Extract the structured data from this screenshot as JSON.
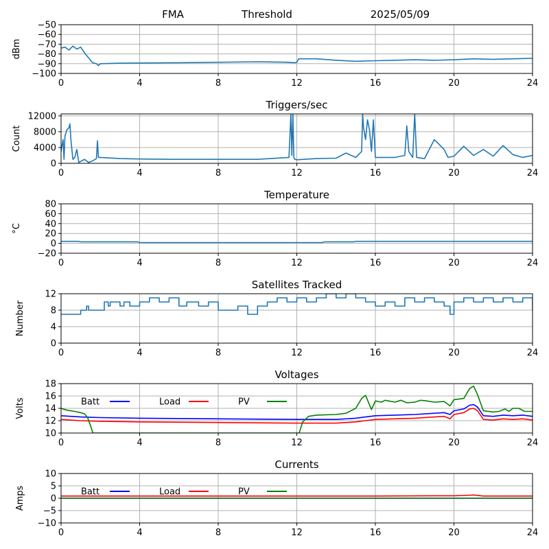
{
  "header": {
    "left": "FMA",
    "center": "Threshold",
    "right": "2025/05/09"
  },
  "colors": {
    "series": "#1f77b4",
    "batt": "#0000ff",
    "load": "#ff0000",
    "pv": "#008000",
    "grid": "#b0b0b0"
  },
  "chart_data": [
    {
      "type": "line",
      "title": "",
      "xlabel": "",
      "ylabel": "dBm",
      "xlim": [
        0,
        24
      ],
      "ylim": [
        -100,
        -50
      ],
      "xticks": [
        0,
        4,
        8,
        12,
        16,
        20,
        24
      ],
      "yticks": [
        -100,
        -90,
        -80,
        -70,
        -60,
        -50
      ],
      "ytick_labels": [
        "−100",
        "−90",
        "−80",
        "−70",
        "−60",
        "−50"
      ],
      "grid": true,
      "series": [
        {
          "x": [
            0,
            0.2,
            0.4,
            0.6,
            0.8,
            1.0,
            1.2,
            1.4,
            1.6,
            1.8,
            1.9,
            2.0,
            3,
            6,
            10,
            11.5,
            11.9,
            12.0,
            12.1,
            13,
            14,
            15,
            16,
            17,
            18,
            19,
            20,
            21,
            22,
            23,
            24
          ],
          "y": [
            -74,
            -73,
            -76,
            -72,
            -75,
            -73,
            -79,
            -84,
            -89,
            -90,
            -92,
            -90,
            -89.5,
            -89,
            -88,
            -88.5,
            -89,
            -88.5,
            -85,
            -85,
            -86.5,
            -87.5,
            -87,
            -86.5,
            -86,
            -86.5,
            -86,
            -85,
            -85.5,
            -85,
            -84.5
          ]
        }
      ]
    },
    {
      "type": "line",
      "title": "Triggers/sec",
      "xlabel": "",
      "ylabel": "Count",
      "xlim": [
        0,
        24
      ],
      "ylim": [
        0,
        12500
      ],
      "xticks": [
        0,
        4,
        8,
        12,
        16,
        20,
        24
      ],
      "yticks": [
        0,
        4000,
        8000,
        12000
      ],
      "grid": true,
      "series": [
        {
          "x": [
            0,
            0.1,
            0.15,
            0.2,
            0.3,
            0.4,
            0.45,
            0.5,
            0.6,
            0.7,
            0.8,
            0.9,
            1.0,
            1.2,
            1.4,
            1.6,
            1.8,
            1.85,
            1.9,
            2.0,
            3,
            4,
            6,
            8,
            10,
            11.6,
            11.7,
            11.75,
            11.8,
            11.85,
            11.9,
            12.0,
            13,
            14,
            14.5,
            15,
            15.3,
            15.35,
            15.4,
            15.5,
            15.6,
            15.7,
            15.8,
            15.9,
            16.0,
            16.5,
            17.0,
            17.5,
            17.6,
            17.7,
            17.9,
            18.0,
            18.1,
            18.5,
            19,
            19.5,
            19.7,
            20,
            20.5,
            21,
            21.5,
            22,
            22.5,
            23,
            23.5,
            24
          ],
          "y": [
            3000,
            6000,
            1000,
            7000,
            8500,
            9000,
            10000,
            6000,
            1000,
            1500,
            3500,
            200,
            500,
            1000,
            200,
            600,
            1200,
            5700,
            1500,
            1500,
            1200,
            1100,
            1000,
            1000,
            1000,
            1500,
            12500,
            2000,
            12500,
            1500,
            1000,
            900,
            1200,
            1300,
            2600,
            1500,
            3000,
            12500,
            9000,
            6000,
            11000,
            8500,
            3000,
            11000,
            1500,
            1500,
            1500,
            2000,
            9500,
            3000,
            1500,
            12500,
            1500,
            1200,
            6000,
            3500,
            1500,
            1800,
            4300,
            2000,
            3500,
            1800,
            4500,
            2200,
            1500,
            2000
          ]
        }
      ]
    },
    {
      "type": "line",
      "title": "Temperature",
      "xlabel": "",
      "ylabel": "°C",
      "xlim": [
        0,
        24
      ],
      "ylim": [
        -20,
        80
      ],
      "xticks": [
        0,
        4,
        8,
        12,
        16,
        20,
        24
      ],
      "yticks": [
        -20,
        0,
        20,
        40,
        60,
        80
      ],
      "ytick_labels": [
        "−20",
        "0",
        "20",
        "40",
        "60",
        "80"
      ],
      "grid": true,
      "series": [
        {
          "x": [
            0,
            0.9,
            1.0,
            3.9,
            4.0,
            13.3,
            13.4,
            14.9,
            15.0,
            24
          ],
          "y": [
            4,
            4,
            3,
            3,
            1.5,
            1.5,
            3,
            3,
            4,
            4
          ]
        }
      ]
    },
    {
      "type": "line",
      "title": "Satellites Tracked",
      "xlabel": "",
      "ylabel": "Number",
      "xlim": [
        0,
        24
      ],
      "ylim": [
        0,
        12
      ],
      "xticks": [
        0,
        4,
        8,
        12,
        16,
        20,
        24
      ],
      "yticks": [
        0,
        4,
        8,
        12
      ],
      "grid": true,
      "step": true,
      "series": [
        {
          "x": [
            0,
            1.0,
            1.3,
            1.4,
            2.2,
            2.4,
            2.5,
            3.0,
            3.2,
            3.5,
            4.0,
            4.5,
            5.0,
            5.5,
            6.0,
            6.4,
            7.0,
            7.5,
            8.0,
            8.5,
            9.0,
            9.5,
            10.0,
            10.5,
            11.0,
            11.5,
            12.0,
            12.5,
            13.0,
            13.5,
            13.7,
            14.0,
            14.5,
            15.0,
            15.5,
            16.0,
            16.5,
            17.0,
            17.5,
            18.0,
            18.5,
            19.0,
            19.5,
            19.8,
            20.0,
            20.5,
            21.0,
            21.5,
            22.0,
            22.5,
            23.0,
            23.5,
            24
          ],
          "y": [
            7,
            8,
            9,
            8,
            10,
            9,
            10,
            9,
            10,
            9,
            10,
            11,
            10,
            11,
            9,
            10,
            9,
            10,
            8,
            8,
            9,
            7,
            9,
            10,
            11,
            10,
            11,
            10,
            11,
            12,
            12,
            11,
            12,
            11,
            10,
            9,
            10,
            9,
            11,
            10,
            11,
            10,
            9,
            7,
            10,
            11,
            10,
            11,
            10,
            11,
            10,
            11,
            8
          ]
        }
      ]
    },
    {
      "type": "line",
      "title": "Voltages",
      "xlabel": "",
      "ylabel": "Volts",
      "xlim": [
        0,
        24
      ],
      "ylim": [
        10,
        18
      ],
      "xticks": [
        0,
        4,
        8,
        12,
        16,
        20,
        24
      ],
      "yticks": [
        10,
        12,
        14,
        16,
        18
      ],
      "grid": true,
      "legend": "top-left, horizontal",
      "series": [
        {
          "name": "Batt",
          "color_key": "batt",
          "x": [
            0,
            1,
            2,
            4,
            8,
            12,
            14,
            15,
            15.5,
            16,
            17,
            18,
            19,
            19.5,
            19.8,
            20,
            20.5,
            20.8,
            21.0,
            21.2,
            21.5,
            22,
            22.5,
            23,
            23.5,
            24
          ],
          "y": [
            12.8,
            12.6,
            12.5,
            12.4,
            12.3,
            12.2,
            12.2,
            12.4,
            12.6,
            12.8,
            12.9,
            13.0,
            13.2,
            13.3,
            13.0,
            13.6,
            13.9,
            14.5,
            14.6,
            14.2,
            12.8,
            12.7,
            12.9,
            12.8,
            12.9,
            12.7
          ]
        },
        {
          "name": "Load",
          "color_key": "load",
          "x": [
            0,
            1,
            2,
            4,
            8,
            12,
            14,
            15,
            15.5,
            16,
            17,
            18,
            19,
            19.5,
            19.8,
            20,
            20.5,
            20.8,
            21.0,
            21.2,
            21.5,
            22,
            22.5,
            23,
            23.5,
            24
          ],
          "y": [
            12.2,
            12.0,
            11.9,
            11.8,
            11.7,
            11.6,
            11.6,
            11.8,
            12.0,
            12.2,
            12.3,
            12.4,
            12.6,
            12.7,
            12.3,
            13.0,
            13.3,
            13.9,
            14.0,
            13.6,
            12.2,
            12.1,
            12.3,
            12.2,
            12.3,
            12.1
          ]
        },
        {
          "name": "PV",
          "color_key": "pv",
          "x": [
            0,
            0.3,
            0.7,
            1.0,
            1.2,
            1.35,
            1.5,
            1.6,
            1.62,
            12.12,
            12.15,
            12.3,
            12.6,
            13,
            14,
            14.5,
            15.0,
            15.3,
            15.5,
            15.8,
            16.0,
            16.3,
            16.5,
            17,
            17.3,
            17.6,
            18,
            18.3,
            18.6,
            19,
            19.5,
            19.8,
            20,
            20.5,
            20.8,
            21.0,
            21.2,
            21.5,
            22.0,
            22.3,
            22.6,
            22.8,
            23.0,
            23.3,
            23.6,
            24
          ],
          "y": [
            14.0,
            13.7,
            13.5,
            13.3,
            13.1,
            12.5,
            11.2,
            10.2,
            10.0,
            10.0,
            10.3,
            11.8,
            12.7,
            12.9,
            13.0,
            13.2,
            14.0,
            15.6,
            16.1,
            13.8,
            15.2,
            15.0,
            15.3,
            15.0,
            15.3,
            14.9,
            15.0,
            15.3,
            15.2,
            15.0,
            15.1,
            14.4,
            15.4,
            15.6,
            17.2,
            17.6,
            16.2,
            13.6,
            13.4,
            13.5,
            13.9,
            13.5,
            14.0,
            14.0,
            13.5,
            13.5
          ]
        }
      ]
    },
    {
      "type": "line",
      "title": "Currents",
      "xlabel": "",
      "ylabel": "Amps",
      "xlim": [
        0,
        24
      ],
      "ylim": [
        -10,
        10
      ],
      "xticks": [
        0,
        4,
        8,
        12,
        16,
        20,
        24
      ],
      "yticks": [
        -10,
        -5,
        0,
        5,
        10
      ],
      "ytick_labels": [
        "−10",
        "−5",
        "0",
        "5",
        "10"
      ],
      "grid": true,
      "legend": "top-left, horizontal",
      "series": [
        {
          "name": "Batt",
          "color_key": "batt",
          "x": [
            0,
            24
          ],
          "y": [
            0,
            0
          ]
        },
        {
          "name": "Load",
          "color_key": "load",
          "x": [
            0,
            4,
            8,
            12,
            16,
            19,
            20,
            20.5,
            21.0,
            21.5,
            22,
            24
          ],
          "y": [
            0.9,
            0.9,
            0.9,
            0.9,
            0.9,
            1.0,
            1.0,
            1.1,
            1.3,
            0.9,
            0.9,
            0.9
          ]
        },
        {
          "name": "PV",
          "color_key": "pv",
          "x": [
            0,
            24
          ],
          "y": [
            0,
            0
          ]
        }
      ]
    }
  ]
}
